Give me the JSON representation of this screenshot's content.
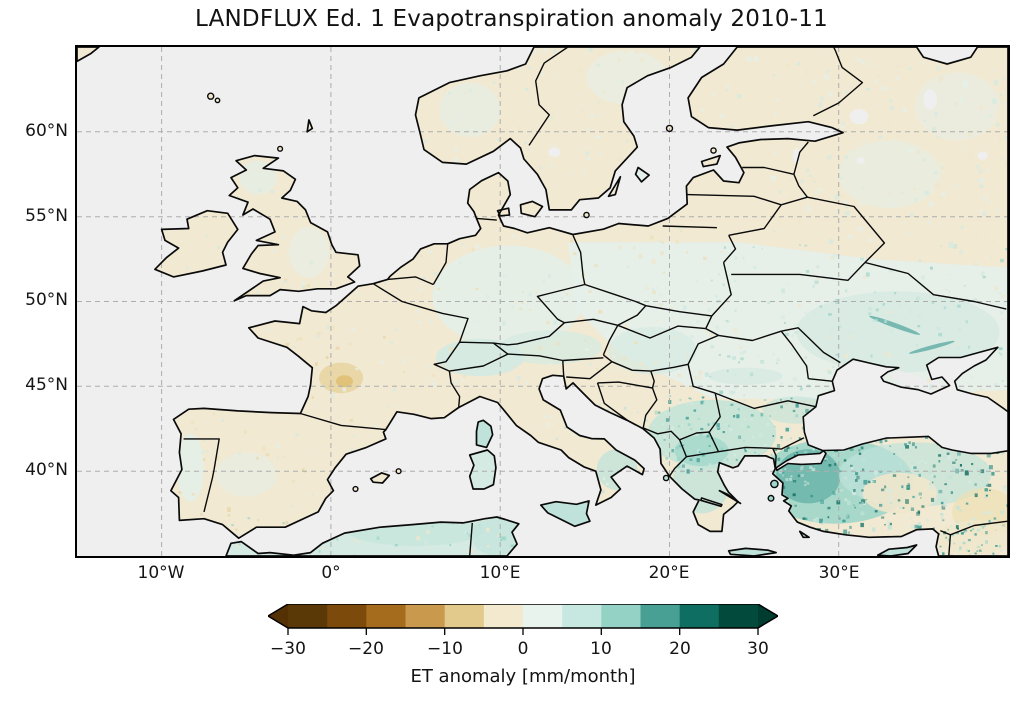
{
  "figure": {
    "title": "LANDFLUX Ed. 1 Evapotranspiration anomaly 2010-11"
  },
  "map": {
    "projection": "PlateCarree",
    "extent": {
      "lon_min": -15,
      "lon_max": 40,
      "lat_min": 35,
      "lat_max": 65
    },
    "x_ticks": [
      {
        "lon": -10,
        "label": "10°W"
      },
      {
        "lon": 0,
        "label": "0°"
      },
      {
        "lon": 10,
        "label": "10°E"
      },
      {
        "lon": 20,
        "label": "20°E"
      },
      {
        "lon": 30,
        "label": "30°E"
      }
    ],
    "y_ticks": [
      {
        "lat": 60,
        "label": "60°N"
      },
      {
        "lat": 55,
        "label": "55°N"
      },
      {
        "lat": 50,
        "label": "50°N"
      },
      {
        "lat": 45,
        "label": "45°N"
      },
      {
        "lat": 40,
        "label": "40°N"
      }
    ],
    "gridline_style": "dashed",
    "ocean_color": "#efefef",
    "coastline_color": "#0a0a0a"
  },
  "colorbar": {
    "label": "ET anomaly [mm/month]",
    "units": "mm/month",
    "extend": "both",
    "tick_labels": [
      "−30",
      "−20",
      "−10",
      "0",
      "10",
      "20",
      "30"
    ],
    "tick_values": [
      -30,
      -20,
      -10,
      0,
      10,
      20,
      30
    ],
    "levels": [
      -30,
      -25,
      -20,
      -15,
      -10,
      -5,
      0,
      5,
      10,
      15,
      20,
      25,
      30
    ],
    "segment_colors": [
      "#5a3906",
      "#7c4a0b",
      "#a66c1e",
      "#c9994e",
      "#e2c98c",
      "#f2e9cf",
      "#e9f3ee",
      "#c6e8e1",
      "#94d2c5",
      "#47a093",
      "#0d6e61",
      "#024b3c"
    ],
    "under_color": "#543005",
    "over_color": "#003c30"
  },
  "palette": {
    "ocean": "#efefef",
    "land_cream": "#f1e9d2",
    "cream2": "#f0e7cc",
    "mint": "#e4f0ea",
    "mint2": "#d4eae2",
    "teal_l": "#bfe3da",
    "teal_m": "#96d3c7",
    "teal_s": "#35978f",
    "teal_dark": "#0b6a5e",
    "tan": "#e8d3a0",
    "tan_dark": "#ddb968",
    "tan_soft": "#eedfb5",
    "gray_nodata": "#ececec",
    "grid": "#adadad",
    "coast": "#0a0a0a"
  },
  "regions": [
    {
      "id": "western-europe",
      "anomaly": "slightly negative (pale cream)"
    },
    {
      "id": "central-france",
      "anomaly": "moderately negative (tan patch)"
    },
    {
      "id": "eastern-europe",
      "anomaly": "slightly positive (pale teal)"
    },
    {
      "id": "balkans-greece",
      "anomaly": "positive (teal)"
    },
    {
      "id": "turkey-anatolia",
      "anomaly": "strongly positive (teal with dark speckles)"
    },
    {
      "id": "scandinavia",
      "anomaly": "mixed near-zero"
    }
  ]
}
